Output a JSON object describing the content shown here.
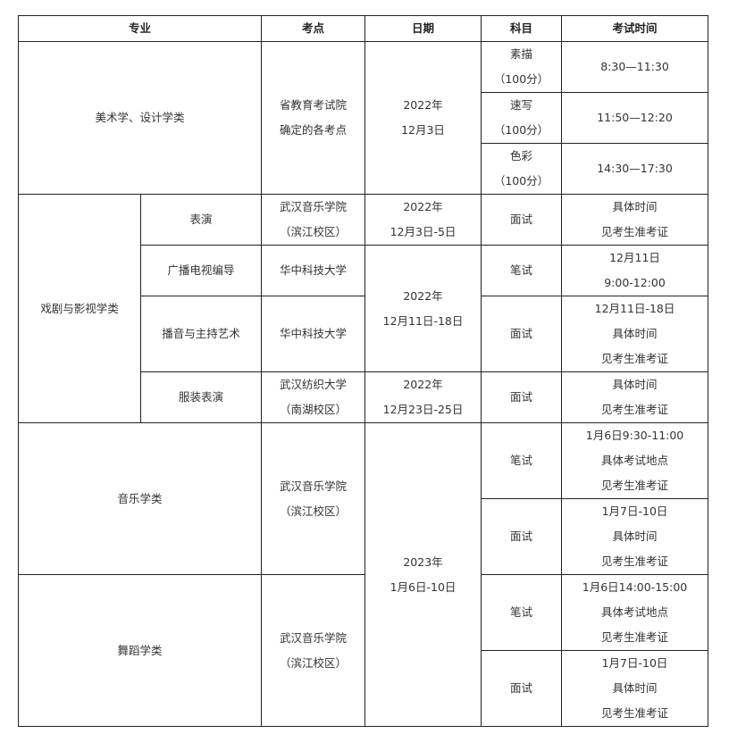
{
  "headers": [
    "专业",
    "考点",
    "日期",
    "科目",
    "考试时间"
  ],
  "art": {
    "major": "美术学、设计学类",
    "location": "省教育考试院\n确定的各考点",
    "date": "2022年\n12月3日",
    "subjects": [
      {
        "subject": "素描\n（100分）",
        "time": "8:30—11:30"
      },
      {
        "subject": "速写\n（100分）",
        "time": "11:50—12:20"
      },
      {
        "subject": "色彩\n（100分）",
        "time": "14:30—17:30"
      }
    ]
  },
  "drama": {
    "major": "戏剧与影视学类",
    "rows": [
      {
        "sub": "表演",
        "location": "武汉音乐学院\n（滨江校区）",
        "date": "2022年\n12月3日-5日",
        "subject": "面试",
        "time": "具体时间\n见考生准考证"
      },
      {
        "sub": "广播电视编导",
        "location": "华中科技大学",
        "date": "2022年\n12月11日-18日",
        "subject": "笔试",
        "time": "12月11日\n9:00-12:00"
      },
      {
        "sub": "播音与主持艺术",
        "location": "华中科技大学",
        "subject": "面试",
        "time": "12月11日-18日\n具体时间\n见考生准考证"
      },
      {
        "sub": "服装表演",
        "location": "武汉纺织大学\n（南湖校区）",
        "date": "2022年\n12月23日-25日",
        "subject": "面试",
        "time": "具体时间\n见考生准考证"
      }
    ]
  },
  "music": {
    "major": "音乐学类",
    "location": "武汉音乐学院\n（滨江校区）",
    "date": "2023年\n1月6日-10日",
    "rows": [
      {
        "subject": "笔试",
        "time": "1月6日9:30-11:00\n具体考试地点\n见考生准考证"
      },
      {
        "subject": "面试",
        "time": "1月7日-10日\n具体时间\n见考生准考证"
      }
    ]
  },
  "dance": {
    "major": "舞蹈学类",
    "location": "武汉音乐学院\n（滨江校区）",
    "rows": [
      {
        "subject": "笔试",
        "time": "1月6日14:00-15:00\n具体考试地点\n见考生准考证"
      },
      {
        "subject": "面试",
        "time": "1月7日-10日\n具体时间\n见考生准考证"
      }
    ]
  }
}
